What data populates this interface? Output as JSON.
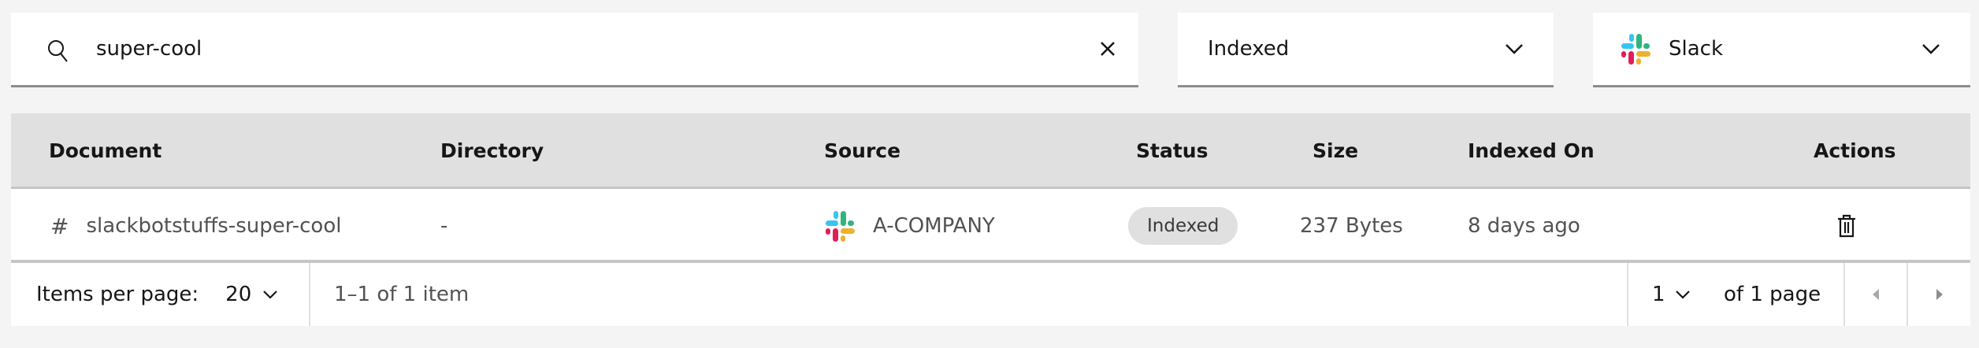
{
  "filters": {
    "search_value": "super-cool",
    "status_selected": "Indexed",
    "source_selected": "Slack"
  },
  "table": {
    "columns": [
      "Document",
      "Directory",
      "Source",
      "Status",
      "Size",
      "Indexed On",
      "Actions"
    ],
    "rows": [
      {
        "document": "slackbotstuffs-super-cool",
        "directory": "-",
        "source": "A-COMPANY",
        "status": "Indexed",
        "size": "237 Bytes",
        "indexed_on": "8 days ago"
      }
    ]
  },
  "pagination": {
    "items_per_page_label": "Items per page:",
    "items_per_page": "20",
    "range_text": "1–1 of 1 item",
    "page": "1",
    "page_total_text": "of 1 page"
  },
  "colors": {
    "slack_blue": "#36c5f0",
    "slack_green": "#2eb67d",
    "slack_red": "#e01e5a",
    "slack_yellow": "#ecb22e"
  }
}
